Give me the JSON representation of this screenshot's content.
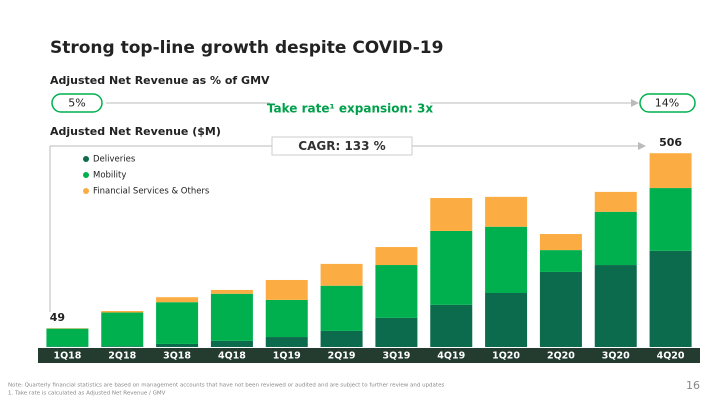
{
  "chart_data": {
    "type": "bar",
    "title": "Strong top-line growth despite COVID-19",
    "take_rate": {
      "label": "Adjusted Net Revenue as % of GMV",
      "start": "5%",
      "end": "14%",
      "text": "Take rate¹ expansion: 3x"
    },
    "subtitle": "Adjusted Net Revenue ($M)",
    "cagr": "CAGR: 133 %",
    "categories": [
      "1Q18",
      "2Q18",
      "3Q18",
      "4Q18",
      "1Q19",
      "2Q19",
      "3Q19",
      "4Q19",
      "1Q20",
      "2Q20",
      "3Q20",
      "4Q20"
    ],
    "series": [
      {
        "name": "Deliveries",
        "color": "#0b6b4c",
        "values": [
          1,
          2,
          8,
          16,
          26,
          42,
          76,
          110,
          141,
          196,
          214,
          251
        ]
      },
      {
        "name": "Mobility",
        "color": "#00b04f",
        "values": [
          47,
          88,
          109,
          123,
          97,
          118,
          138,
          193,
          173,
          57,
          139,
          164
        ]
      },
      {
        "name": "Financial Services & Others",
        "color": "#fbad43",
        "values": [
          1,
          4,
          13,
          10,
          52,
          57,
          47,
          86,
          78,
          42,
          52,
          91
        ]
      }
    ],
    "totals": [
      49,
      null,
      null,
      null,
      null,
      null,
      null,
      null,
      null,
      null,
      null,
      506
    ],
    "notes": [
      "Note: Quarterly financial statistics are based on management accounts that have not been reviewed or audited and are subject to further review and updates",
      "1.    Take rate is calculated as Adjusted Net Revenue / GMV"
    ],
    "page_number": "16"
  }
}
